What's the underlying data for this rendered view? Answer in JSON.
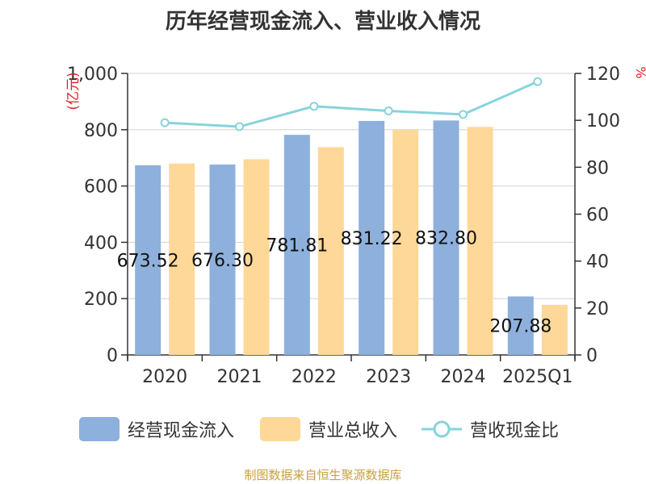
{
  "chart_data": {
    "type": "bar",
    "title": "历年经营现金流入、营业收入情况",
    "categories": [
      "2020",
      "2021",
      "2022",
      "2023",
      "2024",
      "2025Q1"
    ],
    "series": [
      {
        "name": "经营现金流入",
        "values": [
          673.52,
          676.3,
          781.81,
          831.22,
          832.8,
          207.88
        ],
        "color": "#8eb0dc",
        "axis": "left"
      },
      {
        "name": "营业总收入",
        "values": [
          680,
          695,
          738,
          800,
          810,
          178
        ],
        "color": "#fdd898",
        "axis": "left"
      },
      {
        "name": "营收现金比",
        "type": "line",
        "values": [
          99,
          97.3,
          106,
          104,
          102.5,
          116.5
        ],
        "color": "#88d3db",
        "axis": "right"
      }
    ],
    "data_labels": [
      "673.52",
      "676.30",
      "781.81",
      "831.22",
      "832.80",
      "207.88"
    ],
    "left_axis": {
      "label": "(亿元)",
      "ylim": [
        0,
        1000
      ],
      "ticks": [
        "0",
        "200",
        "400",
        "600",
        "800",
        "1,000"
      ]
    },
    "right_axis": {
      "label": "%",
      "ylim": [
        0,
        120
      ],
      "ticks": [
        "0",
        "20",
        "40",
        "60",
        "80",
        "100",
        "120"
      ]
    },
    "grid": true,
    "legend_position": "bottom"
  },
  "legend": {
    "items": [
      "经营现金流入",
      "营业总收入",
      "营收现金比"
    ]
  },
  "footer": {
    "source": "制图数据来自恒生聚源数据库"
  }
}
